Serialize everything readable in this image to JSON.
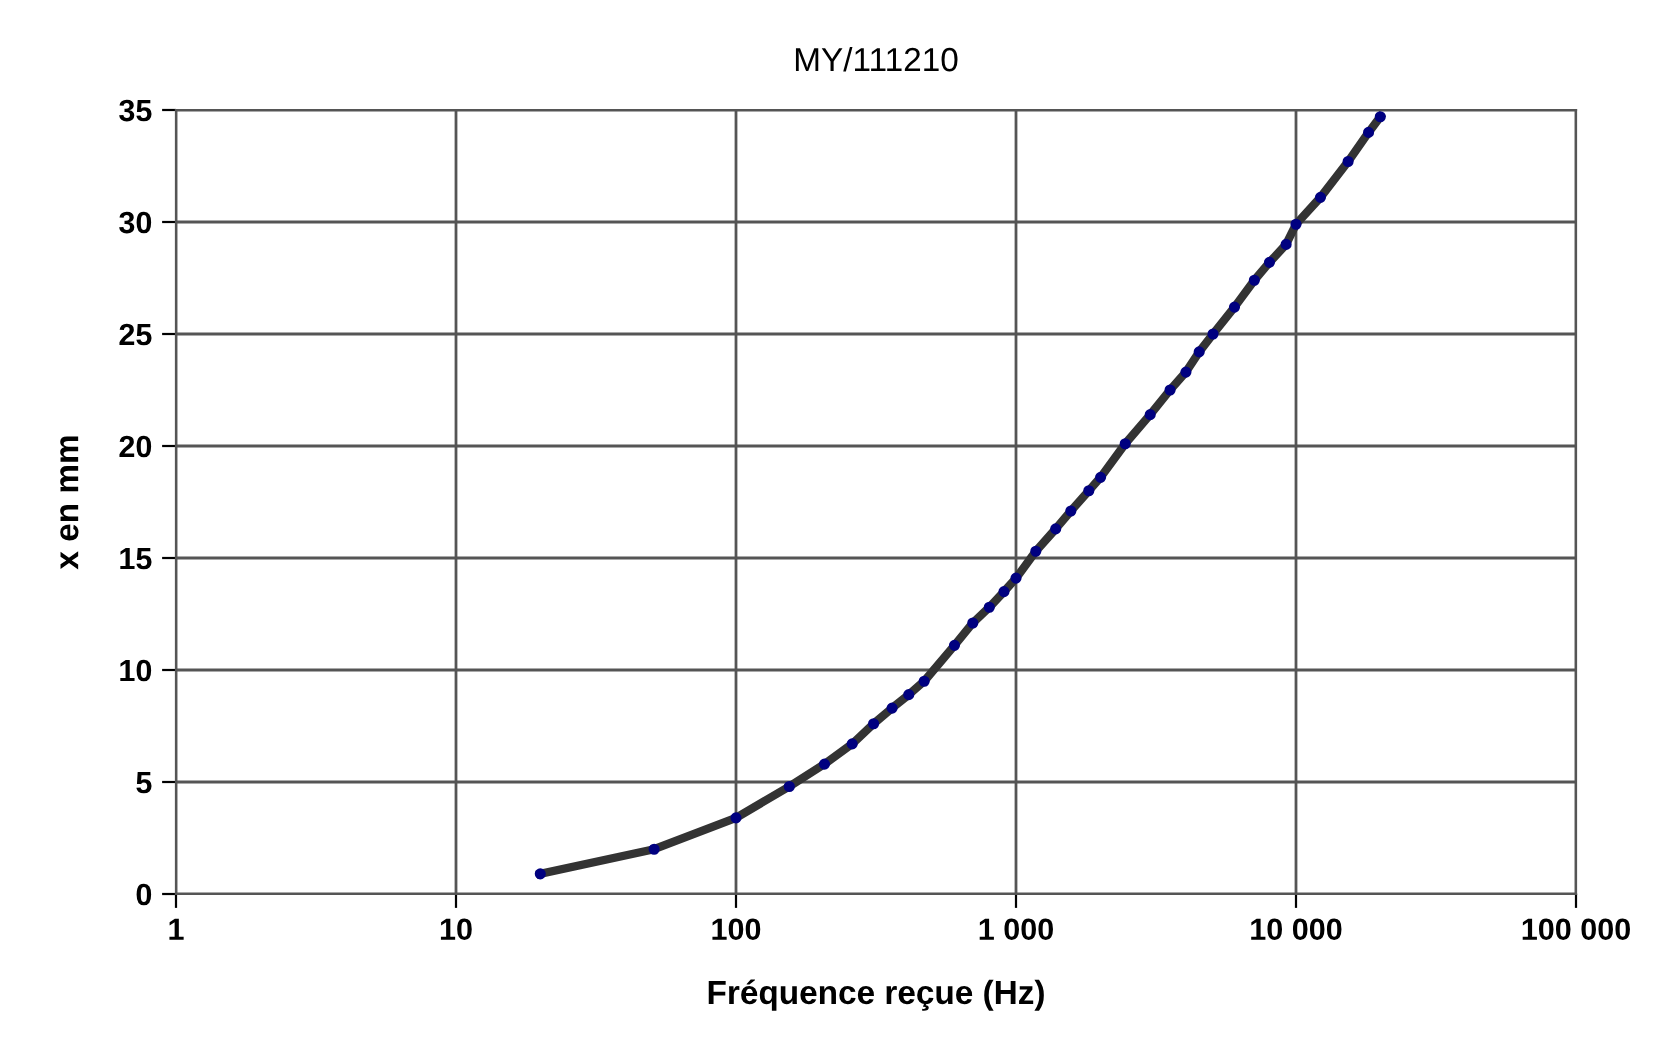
{
  "chart_data": {
    "type": "line",
    "title": "MY/111210",
    "xlabel": "Fréquence reçue (Hz)",
    "ylabel": "x en mm",
    "log": "x",
    "grid": true,
    "marker": "circle",
    "line_style": "solid",
    "xlim": [
      1,
      100000
    ],
    "xticks": [
      1,
      10,
      100,
      {
        "value": 1000,
        "label": "1 000"
      },
      {
        "value": 10000,
        "label": "10 000"
      },
      {
        "value": 100000,
        "label": "100 000"
      }
    ],
    "ylim": [
      0,
      35
    ],
    "yticks": [
      0,
      5,
      10,
      15,
      20,
      25,
      30,
      35
    ],
    "series": [
      {
        "color": "#333333",
        "x": [
          20,
          51,
          100,
          155,
          207,
          260,
          310,
          361,
          414,
          470,
          603,
          701,
          803,
          906,
          1000,
          1177,
          1386,
          1570,
          1820,
          2005,
          2455,
          3015,
          3550,
          4045,
          4510,
          5055,
          6030,
          7100,
          8040,
          9220,
          10000,
          12230,
          15350,
          18160,
          20000
        ],
        "values": [
          0.9,
          2.0,
          3.4,
          4.8,
          5.8,
          6.7,
          7.6,
          8.3,
          8.9,
          9.5,
          11.1,
          12.1,
          12.8,
          13.5,
          14.1,
          15.3,
          16.3,
          17.1,
          18.0,
          18.6,
          20.1,
          21.4,
          22.5,
          23.3,
          24.2,
          25.0,
          26.2,
          27.4,
          28.2,
          29.0,
          29.9,
          31.1,
          32.7,
          34.0,
          34.7
        ]
      }
    ]
  }
}
